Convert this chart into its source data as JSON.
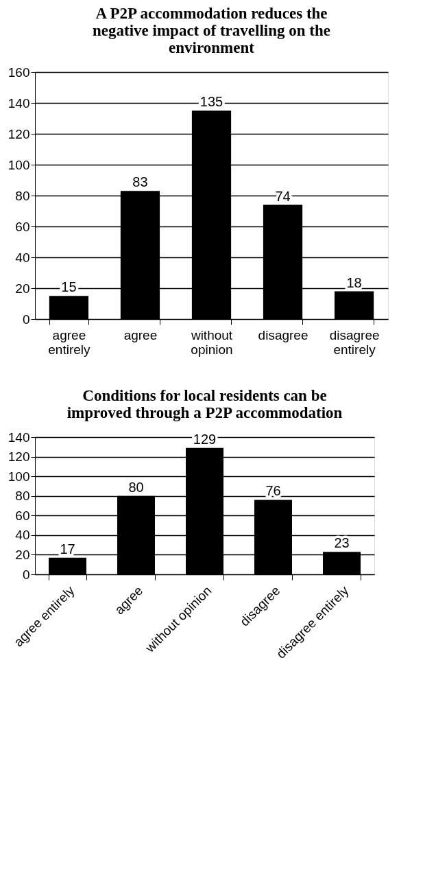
{
  "chart_data": [
    {
      "type": "bar",
      "title": "A P2P accommodation reduces the negative impact of travelling on the environment",
      "categories": [
        "agree entirely",
        "agree",
        "without opinion",
        "disagree",
        "disagree entirely"
      ],
      "values": [
        15,
        83,
        135,
        74,
        18
      ],
      "color": "#000000",
      "ylim": [
        0,
        160
      ],
      "yticks": [
        0,
        20,
        40,
        60,
        80,
        100,
        120,
        140,
        160
      ],
      "grid": "y",
      "data_labels": true
    },
    {
      "type": "bar",
      "title": "Conditions for local residents can be improved through a P2P accommodation",
      "categories": [
        "agree entirely",
        "agree",
        "without opinion",
        "disagree",
        "disagree entirely"
      ],
      "values": [
        17,
        80,
        129,
        76,
        23
      ],
      "color": "#000000",
      "ylim": [
        0,
        140
      ],
      "yticks": [
        0,
        20,
        40,
        60,
        80,
        100,
        120,
        140
      ],
      "grid": "y",
      "data_labels": true
    }
  ]
}
